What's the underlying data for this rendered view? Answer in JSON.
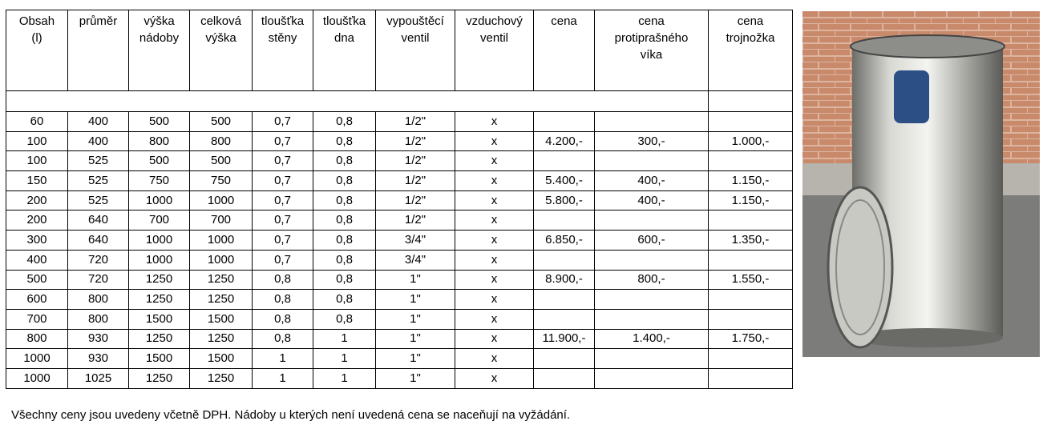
{
  "table": {
    "header": [
      [
        "Obsah",
        "(l)"
      ],
      [
        "průměr"
      ],
      [
        "výška",
        "nádoby"
      ],
      [
        "celková",
        "výška"
      ],
      [
        "tloušťka",
        "stěny"
      ],
      [
        "tloušťka",
        "dna"
      ],
      [
        "vypouštěcí",
        "ventil"
      ],
      [
        "vzduchový",
        "ventil"
      ],
      [
        "cena"
      ],
      [
        "cena",
        "protiprašného",
        "víka"
      ],
      [
        "cena",
        "trojnožka"
      ]
    ],
    "rows": [
      [
        "60",
        "400",
        "500",
        "500",
        "0,7",
        "0,8",
        "1/2\"",
        "x",
        null,
        null,
        null
      ],
      [
        "100",
        "400",
        "800",
        "800",
        "0,7",
        "0,8",
        "1/2\"",
        "x",
        "4.200,-",
        "300,-",
        "1.000,-"
      ],
      [
        "100",
        "525",
        "500",
        "500",
        "0,7",
        "0,8",
        "1/2\"",
        "x",
        null,
        null,
        null
      ],
      [
        "150",
        "525",
        "750",
        "750",
        "0,7",
        "0,8",
        "1/2\"",
        "x",
        "5.400,-",
        "400,-",
        "1.150,-"
      ],
      [
        "200",
        "525",
        "1000",
        "1000",
        "0,7",
        "0,8",
        "1/2\"",
        "x",
        "5.800,-",
        "400,-",
        "1.150,-"
      ],
      [
        "200",
        "640",
        "700",
        "700",
        "0,7",
        "0,8",
        "1/2\"",
        "x",
        null,
        null,
        null
      ],
      [
        "300",
        "640",
        "1000",
        "1000",
        "0,7",
        "0,8",
        "3/4\"",
        "x",
        "6.850,-",
        "600,-",
        "1.350,-"
      ],
      [
        "400",
        "720",
        "1000",
        "1000",
        "0,7",
        "0,8",
        "3/4\"",
        "x",
        null,
        null,
        null
      ],
      [
        "500",
        "720",
        "1250",
        "1250",
        "0,8",
        "0,8",
        "1\"",
        "x",
        "8.900,-",
        "800,-",
        "1.550,-"
      ],
      [
        "600",
        "800",
        "1250",
        "1250",
        "0,8",
        "0,8",
        "1\"",
        "x",
        null,
        null,
        null
      ],
      [
        "700",
        "800",
        "1500",
        "1500",
        "0,8",
        "0,8",
        "1\"",
        "x",
        null,
        null,
        null
      ],
      [
        "800",
        "930",
        "1250",
        "1250",
        "0,8",
        "1",
        "1\"",
        "x",
        "11.900,-",
        "1.400,-",
        "1.750,-"
      ],
      [
        "1000",
        "930",
        "1500",
        "1500",
        "1",
        "1",
        "1\"",
        "x",
        null,
        null,
        null
      ],
      [
        "1000",
        "1025",
        "1250",
        "1250",
        "1",
        "1",
        "1\"",
        "x",
        null,
        null,
        null
      ]
    ]
  },
  "footer": "Všechny ceny jsou uvedeny včetně DPH. Nádoby u kterých není uvedená cena se naceňují na vyžádání."
}
